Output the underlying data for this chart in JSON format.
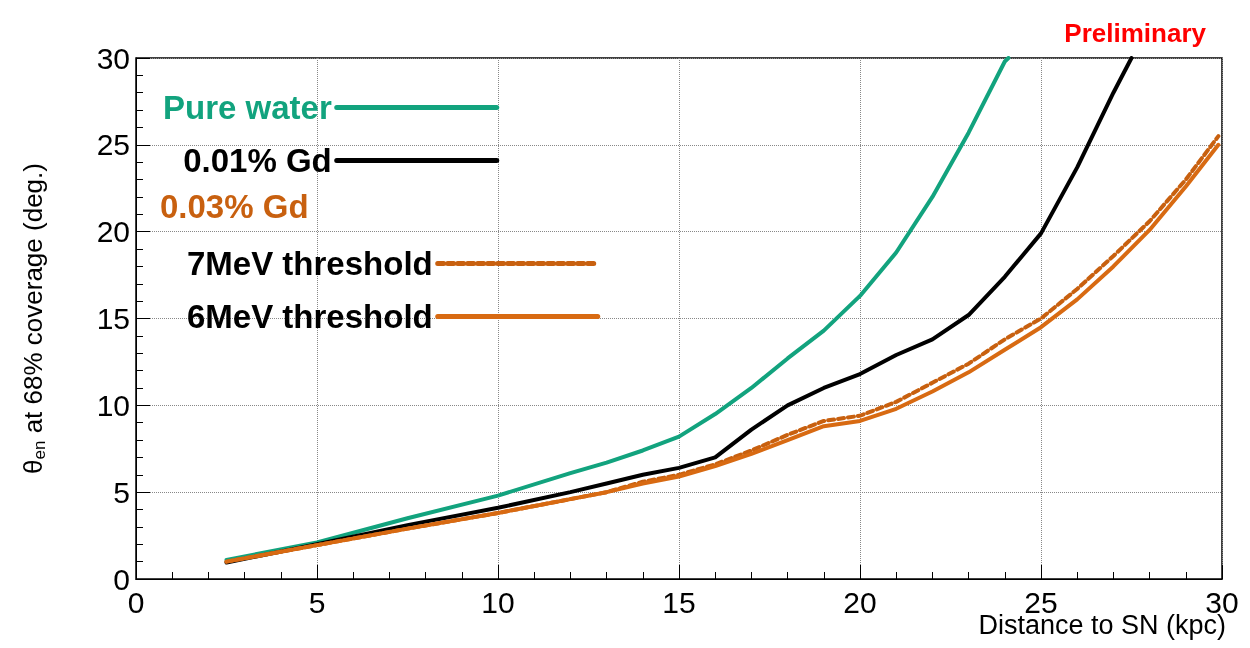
{
  "chart_data": {
    "type": "line",
    "xlabel": "Distance to SN (kpc)",
    "ylabel": "θ$_{en}$ at 68% coverage (deg.)",
    "legend_title": "0.03% Gd",
    "annotations": [
      "Preliminary"
    ],
    "xlim": [
      0,
      30
    ],
    "xticks": [
      0,
      5,
      10,
      15,
      20,
      25,
      30
    ],
    "ylim": [
      0,
      30
    ],
    "yticks": [
      0,
      5,
      10,
      15,
      20,
      25,
      30
    ],
    "grid": true,
    "legend": "top left",
    "marker": "none",
    "series": [
      {
        "name": "Pure water",
        "color": "#12a37e",
        "line_style": "solid",
        "x": [
          2.5,
          5,
          7.5,
          10,
          12,
          13,
          14,
          15,
          16,
          17,
          18,
          19,
          20,
          21,
          22,
          23,
          24,
          24.1
        ],
        "values": [
          1.1,
          2.1,
          3.5,
          4.8,
          6.1,
          6.7,
          7.4,
          8.2,
          9.5,
          11.0,
          12.7,
          14.3,
          16.3,
          18.8,
          22.0,
          25.7,
          29.8,
          30
        ]
      },
      {
        "name": "0.01% Gd",
        "color": "#000000",
        "line_style": "solid",
        "x": [
          2.5,
          5,
          7.5,
          10,
          12,
          13,
          14,
          15,
          16,
          17,
          18,
          19,
          20,
          21,
          22,
          23,
          24,
          25,
          26,
          27,
          27.5
        ],
        "values": [
          0.95,
          2.0,
          3.1,
          4.1,
          5.0,
          5.5,
          6.0,
          6.4,
          7.0,
          8.6,
          10.0,
          11.0,
          11.8,
          12.9,
          13.8,
          15.2,
          17.4,
          19.9,
          23.7,
          28.0,
          30
        ]
      },
      {
        "name": "7MeV threshold",
        "color": "#c8600f",
        "line_style": "dashed",
        "x": [
          2.5,
          5,
          7.5,
          10,
          12,
          13,
          14,
          15,
          16,
          17,
          18,
          19,
          20,
          21,
          22,
          23,
          24,
          25,
          26,
          27,
          28,
          29,
          29.9
        ],
        "values": [
          1.0,
          1.95,
          2.9,
          3.8,
          4.6,
          5.0,
          5.6,
          6.0,
          6.6,
          7.4,
          8.3,
          9.1,
          9.4,
          10.2,
          11.3,
          12.4,
          13.8,
          15.0,
          16.7,
          18.6,
          20.6,
          23.0,
          25.5
        ]
      },
      {
        "name": "6MeV threshold",
        "color": "#d86a12",
        "line_style": "solid",
        "x": [
          2.5,
          5,
          7.5,
          10,
          12,
          13,
          14,
          15,
          16,
          17,
          18,
          19,
          20,
          21,
          22,
          23,
          24,
          25,
          26,
          27,
          28,
          29,
          29.9
        ],
        "values": [
          1.0,
          1.95,
          2.9,
          3.8,
          4.6,
          5.0,
          5.5,
          5.9,
          6.5,
          7.2,
          8.0,
          8.8,
          9.1,
          9.8,
          10.8,
          11.9,
          13.2,
          14.5,
          16.1,
          18.0,
          20.1,
          22.6,
          25.0
        ]
      }
    ]
  }
}
